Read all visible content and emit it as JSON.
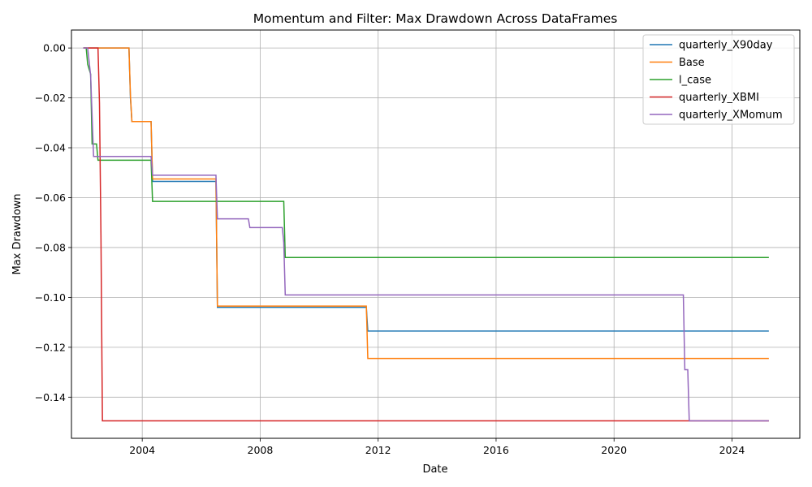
{
  "chart_data": {
    "type": "line",
    "title": "Momentum and Filter: Max Drawdown Across DataFrames",
    "xlabel": "Date",
    "ylabel": "Max Drawdown",
    "xlim": [
      2001.6,
      2026.3
    ],
    "ylim": [
      -0.1565,
      0.0072
    ],
    "x_ticks": [
      2004,
      2008,
      2012,
      2016,
      2020,
      2024
    ],
    "y_ticks": [
      0.0,
      -0.02,
      -0.04,
      -0.06,
      -0.08,
      -0.1,
      -0.12,
      -0.14
    ],
    "y_tick_labels": [
      "0.00",
      "−0.02",
      "−0.04",
      "−0.06",
      "−0.08",
      "−0.10",
      "−0.12",
      "−0.14"
    ],
    "grid": true,
    "legend_position": "top-right",
    "series": [
      {
        "name": "quarterly_X90day",
        "color": "#1f77b4",
        "x": [
          2002.0,
          2003.55,
          2003.6,
          2003.65,
          2004.3,
          2004.35,
          2006.5,
          2006.55,
          2011.6,
          2011.65,
          2025.25
        ],
        "y": [
          0.0,
          0.0,
          -0.02,
          -0.0295,
          -0.0295,
          -0.0535,
          -0.0535,
          -0.104,
          -0.104,
          -0.1135,
          -0.1135
        ]
      },
      {
        "name": "Base",
        "color": "#ff7f0e",
        "x": [
          2002.0,
          2003.55,
          2003.6,
          2003.65,
          2004.3,
          2004.35,
          2006.5,
          2006.55,
          2011.6,
          2011.65,
          2025.25
        ],
        "y": [
          0.0,
          0.0,
          -0.019,
          -0.0295,
          -0.0295,
          -0.0525,
          -0.0525,
          -0.1035,
          -0.1035,
          -0.1245,
          -0.1245
        ]
      },
      {
        "name": "l_case",
        "color": "#2ca02c",
        "x": [
          2002.0,
          2002.1,
          2002.15,
          2002.25,
          2002.3,
          2002.45,
          2002.5,
          2004.3,
          2004.35,
          2008.8,
          2008.85,
          2025.25
        ],
        "y": [
          0.0,
          0.0,
          -0.0065,
          -0.0105,
          -0.0385,
          -0.0385,
          -0.045,
          -0.045,
          -0.0615,
          -0.0615,
          -0.084,
          -0.084
        ]
      },
      {
        "name": "quarterly_XBMI",
        "color": "#d62728",
        "x": [
          2002.0,
          2002.5,
          2002.55,
          2002.6,
          2002.65,
          2025.25
        ],
        "y": [
          0.0,
          0.0,
          -0.022,
          -0.075,
          -0.1495,
          -0.1495
        ]
      },
      {
        "name": "quarterly_XMomum",
        "color": "#9467bd",
        "x": [
          2002.0,
          2002.15,
          2002.25,
          2002.35,
          2004.3,
          2004.35,
          2006.5,
          2006.55,
          2007.6,
          2007.65,
          2008.75,
          2008.8,
          2008.85,
          2022.35,
          2022.4,
          2022.5,
          2022.55,
          2025.25
        ],
        "y": [
          0.0,
          0.0,
          -0.011,
          -0.0435,
          -0.0435,
          -0.051,
          -0.051,
          -0.0685,
          -0.0685,
          -0.072,
          -0.072,
          -0.078,
          -0.099,
          -0.099,
          -0.129,
          -0.129,
          -0.1495,
          -0.1495
        ]
      }
    ]
  }
}
